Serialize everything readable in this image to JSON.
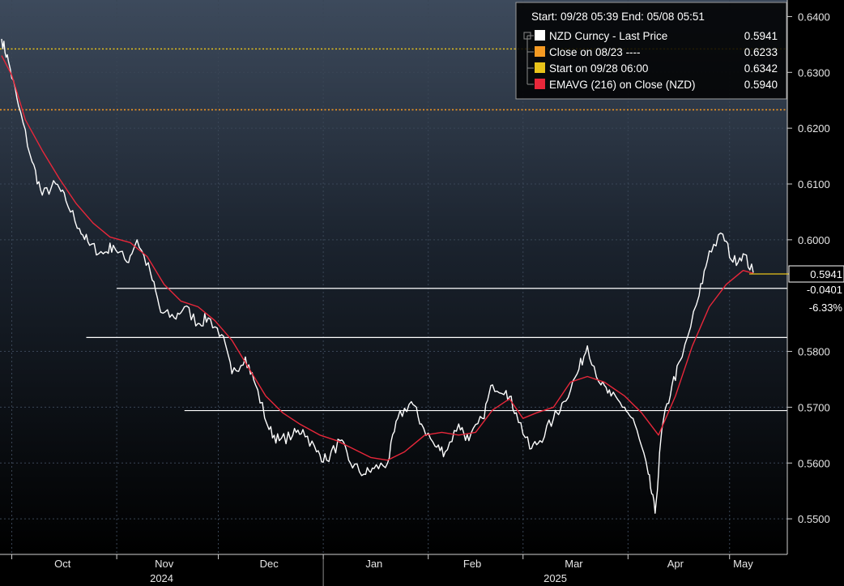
{
  "chart_data": {
    "type": "line",
    "title": "",
    "xlabel": "",
    "ylabel": "",
    "ylim": [
      0.549,
      0.6405
    ],
    "y_ticks": [
      "0.6400",
      "0.6300",
      "0.6200",
      "0.6100",
      "0.6000",
      "0.5941",
      "0.5800",
      "0.5700",
      "0.5600",
      "0.5500"
    ],
    "x_month_labels": [
      "Oct",
      "Nov",
      "Dec",
      "Jan",
      "Feb",
      "Mar",
      "Apr",
      "May"
    ],
    "x_year_labels": [
      "2024",
      "2025"
    ],
    "legend": {
      "position": "top-right",
      "header": "Start: 09/28 05:39 End: 05/08 05:51",
      "entries": [
        {
          "label": "NZD Curncy - Last Price",
          "value": "0.5941",
          "color": "#ffffff"
        },
        {
          "label": "Close on 08/23 ----",
          "value": "0.6233",
          "color": "#f59a23"
        },
        {
          "label": "Start on 09/28 06:00",
          "value": "0.6342",
          "color": "#e8c21a"
        },
        {
          "label": "EMAVG (216)  on Close (NZD)",
          "value": "0.5940",
          "color": "#e8273a"
        }
      ]
    },
    "price_tags": [
      "0.5941",
      "-0.0401",
      "-6.33%"
    ],
    "reference_lines": [
      {
        "name": "Close on 08/23",
        "value": 0.6233,
        "color": "#f59a23",
        "style": "dotted"
      },
      {
        "name": "Start on 09/28 06:00",
        "value": 0.6342,
        "color": "#e8c21a",
        "style": "dotted"
      }
    ],
    "horizontal_levels": [
      {
        "value": 0.5913,
        "from": "2024-11-01"
      },
      {
        "value": 0.5825,
        "from": "2024-10-23"
      },
      {
        "value": 0.5694,
        "from": "2024-11-21"
      }
    ],
    "series": [
      {
        "name": "NZD Curncy - Last Price",
        "color": "#ffffff",
        "x": [
          "2024-09-28",
          "2024-09-30",
          "2024-10-03",
          "2024-10-07",
          "2024-10-10",
          "2024-10-14",
          "2024-10-17",
          "2024-10-21",
          "2024-10-24",
          "2024-10-28",
          "2024-10-31",
          "2024-11-04",
          "2024-11-07",
          "2024-11-11",
          "2024-11-14",
          "2024-11-18",
          "2024-11-21",
          "2024-11-25",
          "2024-11-28",
          "2024-12-02",
          "2024-12-05",
          "2024-12-09",
          "2024-12-12",
          "2024-12-16",
          "2024-12-19",
          "2024-12-23",
          "2024-12-26",
          "2024-12-30",
          "2025-01-02",
          "2025-01-06",
          "2025-01-09",
          "2025-01-13",
          "2025-01-16",
          "2025-01-20",
          "2025-01-23",
          "2025-01-27",
          "2025-01-30",
          "2025-02-03",
          "2025-02-06",
          "2025-02-10",
          "2025-02-13",
          "2025-02-17",
          "2025-02-20",
          "2025-02-24",
          "2025-02-27",
          "2025-03-03",
          "2025-03-06",
          "2025-03-10",
          "2025-03-13",
          "2025-03-17",
          "2025-03-20",
          "2025-03-24",
          "2025-03-27",
          "2025-03-31",
          "2025-04-03",
          "2025-04-07",
          "2025-04-09",
          "2025-04-11",
          "2025-04-14",
          "2025-04-17",
          "2025-04-22",
          "2025-04-25",
          "2025-04-29",
          "2025-05-02",
          "2025-05-05",
          "2025-05-08"
        ],
        "values": [
          0.636,
          0.632,
          0.624,
          0.614,
          0.608,
          0.61,
          0.607,
          0.602,
          0.599,
          0.5975,
          0.599,
          0.596,
          0.6,
          0.594,
          0.587,
          0.586,
          0.588,
          0.585,
          0.586,
          0.583,
          0.576,
          0.579,
          0.574,
          0.566,
          0.564,
          0.565,
          0.566,
          0.562,
          0.5605,
          0.564,
          0.56,
          0.558,
          0.559,
          0.56,
          0.568,
          0.571,
          0.567,
          0.563,
          0.562,
          0.567,
          0.564,
          0.568,
          0.574,
          0.573,
          0.569,
          0.5625,
          0.564,
          0.568,
          0.571,
          0.576,
          0.581,
          0.574,
          0.572,
          0.57,
          0.567,
          0.558,
          0.551,
          0.566,
          0.574,
          0.579,
          0.59,
          0.598,
          0.601,
          0.596,
          0.5975,
          0.5941
        ]
      },
      {
        "name": "EMAVG (216)  on Close (NZD)",
        "color": "#e8273a",
        "x": [
          "2024-09-28",
          "2024-10-01",
          "2024-10-05",
          "2024-10-10",
          "2024-10-15",
          "2024-10-20",
          "2024-10-25",
          "2024-10-30",
          "2024-11-05",
          "2024-11-10",
          "2024-11-15",
          "2024-11-20",
          "2024-11-25",
          "2024-11-30",
          "2024-12-05",
          "2024-12-10",
          "2024-12-15",
          "2024-12-20",
          "2024-12-25",
          "2024-12-31",
          "2025-01-05",
          "2025-01-10",
          "2025-01-15",
          "2025-01-20",
          "2025-01-25",
          "2025-01-31",
          "2025-02-05",
          "2025-02-10",
          "2025-02-15",
          "2025-02-20",
          "2025-02-25",
          "2025-03-01",
          "2025-03-05",
          "2025-03-10",
          "2025-03-15",
          "2025-03-20",
          "2025-03-25",
          "2025-03-31",
          "2025-04-05",
          "2025-04-10",
          "2025-04-15",
          "2025-04-20",
          "2025-04-25",
          "2025-04-30",
          "2025-05-05",
          "2025-05-08"
        ],
        "values": [
          0.633,
          0.6295,
          0.6215,
          0.616,
          0.611,
          0.6065,
          0.603,
          0.6005,
          0.5995,
          0.597,
          0.592,
          0.589,
          0.588,
          0.5855,
          0.582,
          0.577,
          0.572,
          0.569,
          0.567,
          0.565,
          0.564,
          0.5625,
          0.561,
          0.5605,
          0.562,
          0.565,
          0.5655,
          0.565,
          0.5655,
          0.5695,
          0.5715,
          0.568,
          0.569,
          0.57,
          0.5745,
          0.5755,
          0.5745,
          0.572,
          0.569,
          0.565,
          0.572,
          0.581,
          0.588,
          0.592,
          0.5945,
          0.594
        ]
      }
    ]
  }
}
